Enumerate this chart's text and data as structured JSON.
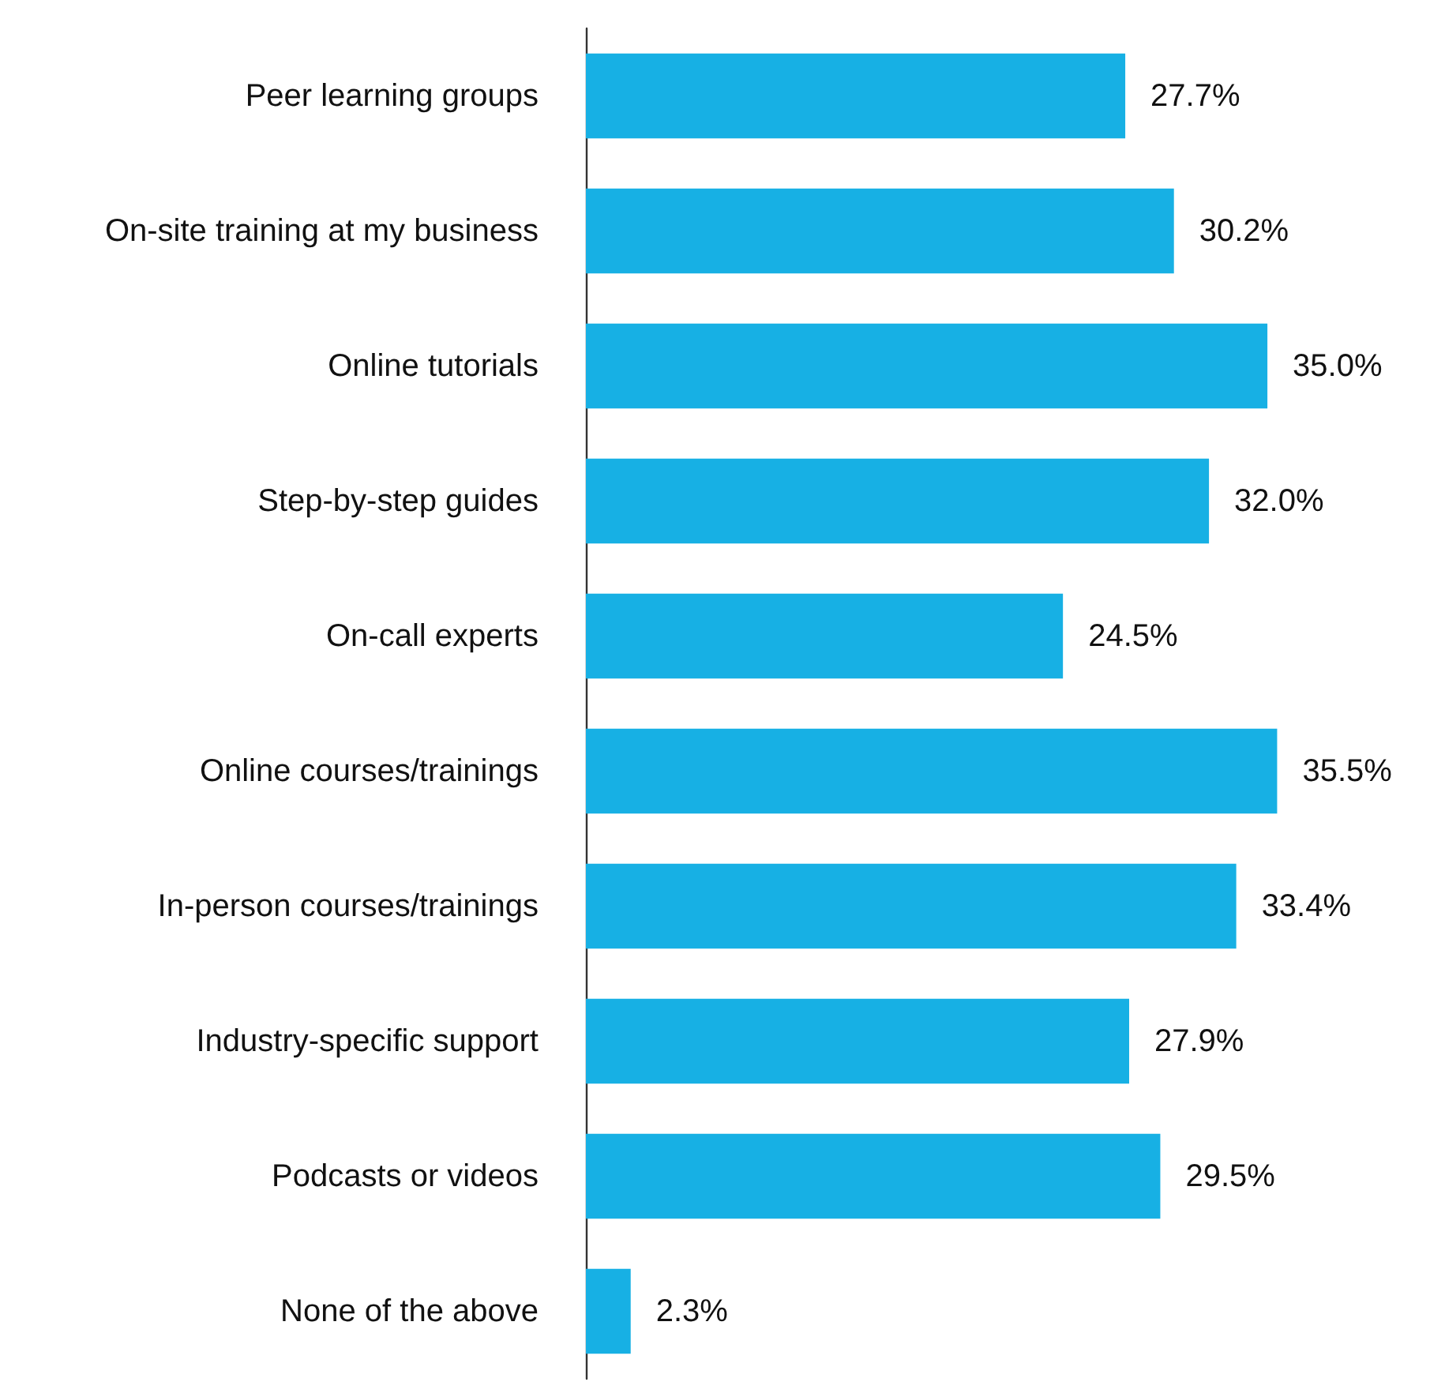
{
  "chart_data": {
    "type": "bar",
    "orientation": "horizontal",
    "categories": [
      "Peer learning groups",
      "On-site training at my business",
      "Online tutorials",
      "Step-by-step guides",
      "On-call experts",
      "Online courses/trainings",
      "In-person courses/trainings",
      "Industry-specific support",
      "Podcasts or videos",
      "None of the above"
    ],
    "values": [
      27.7,
      30.2,
      35.0,
      32.0,
      24.5,
      35.5,
      33.4,
      27.9,
      29.5,
      2.3
    ],
    "value_labels": [
      "27.7%",
      "30.2%",
      "35.0%",
      "32.0%",
      "24.5%",
      "35.5%",
      "33.4%",
      "27.9%",
      "29.5%",
      "2.3%"
    ],
    "color": "#17b0e4"
  }
}
